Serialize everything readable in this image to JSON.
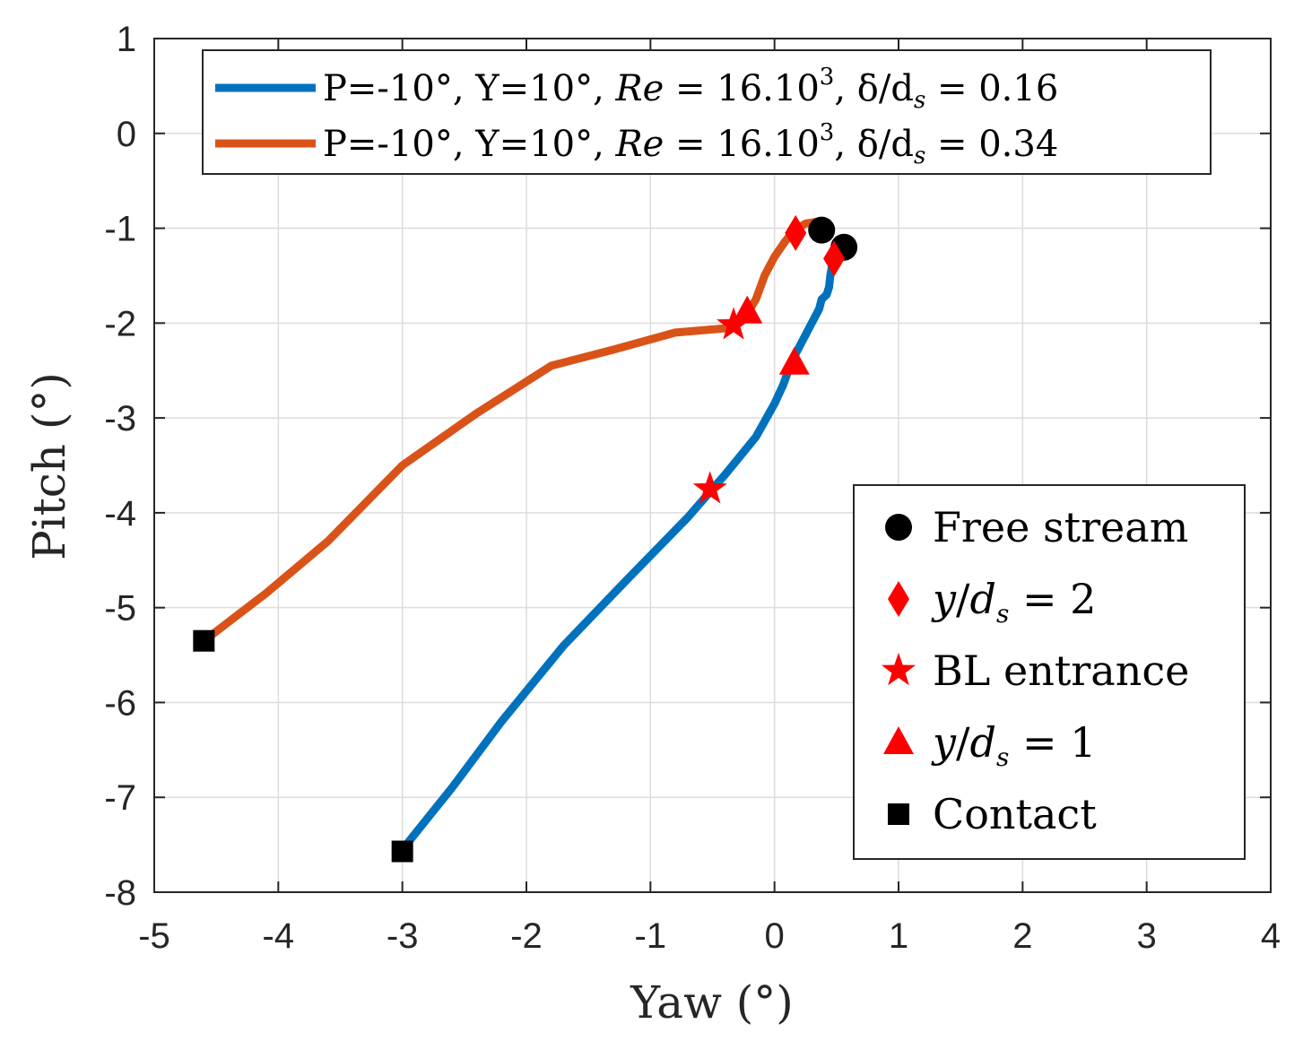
{
  "chart_data": {
    "type": "line",
    "title": "",
    "xlabel": "Yaw (°)",
    "ylabel": "Pitch (°)",
    "xlim": [
      -5,
      4
    ],
    "ylim": [
      -8,
      1
    ],
    "xticks": [
      -5,
      -4,
      -3,
      -2,
      -1,
      0,
      1,
      2,
      3,
      4
    ],
    "yticks": [
      -8,
      -7,
      -6,
      -5,
      -4,
      -3,
      -2,
      -1,
      0,
      1
    ],
    "xtick_labels": [
      "-5",
      "-4",
      "-3",
      "-2",
      "-1",
      "0",
      "1",
      "2",
      "3",
      "4"
    ],
    "ytick_labels": [
      "-8",
      "-7",
      "-6",
      "-5",
      "-4",
      "-3",
      "-2",
      "-1",
      "0",
      "1"
    ],
    "grid": true,
    "series": [
      {
        "name": "P=-10°, Y=10°, Re = 16.10³, δ/d_s = 0.16",
        "legend_parts": [
          "P=-10°, Y=10°, ",
          "Re",
          " = 16.10",
          "3",
          ", δ/d",
          "s",
          " = 0.16"
        ],
        "color": "#0072BD",
        "x": [
          -3.0,
          -2.6,
          -2.2,
          -1.7,
          -1.2,
          -0.7,
          -0.4,
          -0.15,
          0.0,
          0.07,
          0.14,
          0.22,
          0.3,
          0.36,
          0.38,
          0.42,
          0.44,
          0.45,
          0.47,
          0.48
        ],
        "y": [
          -7.55,
          -6.9,
          -6.2,
          -5.4,
          -4.72,
          -4.05,
          -3.6,
          -3.2,
          -2.85,
          -2.65,
          -2.4,
          -2.2,
          -2.0,
          -1.85,
          -1.75,
          -1.7,
          -1.62,
          -1.5,
          -1.35,
          -1.25
        ]
      },
      {
        "name": "P=-10°, Y=10°, Re = 16.10³, δ/d_s = 0.34",
        "legend_parts": [
          "P=-10°, Y=10°, ",
          "Re",
          " = 16.10",
          "3",
          ", δ/d",
          "s",
          " = 0.34"
        ],
        "color": "#D95319",
        "x": [
          -4.55,
          -4.1,
          -3.6,
          -3.0,
          -2.4,
          -1.8,
          -1.3,
          -0.8,
          -0.35,
          -0.22,
          -0.15,
          -0.08,
          0.0,
          0.08,
          0.15,
          0.25,
          0.35,
          0.38
        ],
        "y": [
          -5.3,
          -4.85,
          -4.3,
          -3.5,
          -2.95,
          -2.45,
          -2.28,
          -2.1,
          -2.05,
          -1.9,
          -1.75,
          -1.5,
          -1.3,
          -1.15,
          -1.03,
          -0.95,
          -0.93,
          -1.0
        ]
      }
    ],
    "markers": [
      {
        "label": "Free stream",
        "shape": "circle",
        "color": "#000000",
        "points": [
          [
            0.38,
            -1.02
          ],
          [
            0.56,
            -1.2
          ]
        ]
      },
      {
        "label": "y/d_s = 2",
        "shape": "diamond",
        "color": "#FF0000",
        "points": [
          [
            0.17,
            -1.05
          ],
          [
            0.48,
            -1.32
          ]
        ]
      },
      {
        "label": "BL entrance",
        "shape": "star",
        "color": "#FF0000",
        "points": [
          [
            -0.33,
            -2.02
          ],
          [
            -0.52,
            -3.75
          ]
        ]
      },
      {
        "label": "y/d_s = 1",
        "shape": "triangle",
        "color": "#FF0000",
        "points": [
          [
            -0.22,
            -1.88
          ],
          [
            0.16,
            -2.42
          ]
        ]
      },
      {
        "label": "Contact",
        "shape": "square",
        "color": "#000000",
        "points": [
          [
            -4.6,
            -5.35
          ],
          [
            -3.0,
            -7.57
          ]
        ]
      }
    ],
    "marker_legend": {
      "entries": [
        {
          "shape": "circle",
          "color": "#000000",
          "label_parts": [
            "Free stream"
          ]
        },
        {
          "shape": "diamond",
          "color": "#FF0000",
          "label_parts": [
            "y",
            "/",
            "d",
            "s",
            " = 2"
          ]
        },
        {
          "shape": "star",
          "color": "#FF0000",
          "label_parts": [
            "BL entrance"
          ]
        },
        {
          "shape": "triangle",
          "color": "#FF0000",
          "label_parts": [
            "y",
            "/",
            "d",
            "s",
            " = 1"
          ]
        },
        {
          "shape": "square",
          "color": "#000000",
          "label_parts": [
            "Contact"
          ]
        }
      ],
      "placement": "bottom-right"
    },
    "series_legend_placement": "top-left"
  }
}
